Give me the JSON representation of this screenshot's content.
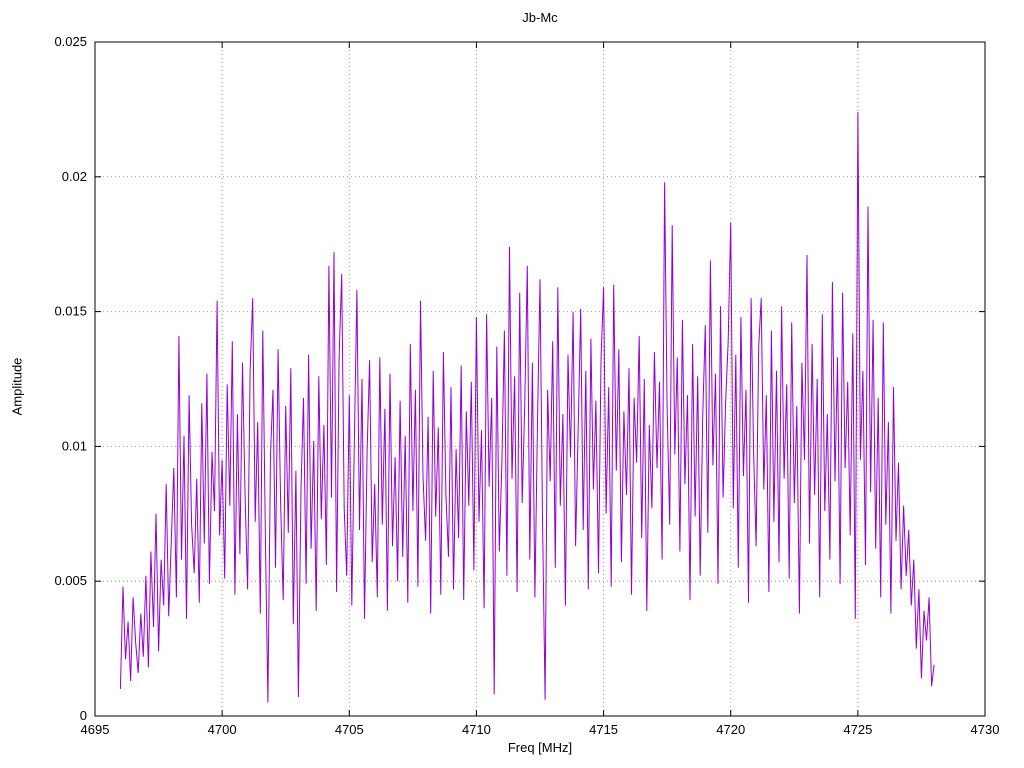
{
  "chart_data": {
    "type": "line",
    "title": "Jb-Mc",
    "xlabel": "Freq [MHz]",
    "ylabel": "Amplitude",
    "xlim": [
      4695,
      4730
    ],
    "ylim": [
      0,
      0.025
    ],
    "xticks": [
      4695,
      4700,
      4705,
      4710,
      4715,
      4720,
      4725,
      4730
    ],
    "yticks": [
      0,
      0.005,
      0.01,
      0.015,
      0.02,
      0.025
    ],
    "ytick_labels": [
      "0",
      "0.005",
      "0.01",
      "0.015",
      "0.02",
      "0.025"
    ],
    "grid": true,
    "legend": "none",
    "line_color": "#9400d3",
    "grid_color": "#9a9a9a",
    "series_name": "Jb-Mc",
    "x_start": 4696.0,
    "x_step": 0.1,
    "values": [
      0.001,
      0.0048,
      0.0021,
      0.0035,
      0.0013,
      0.0044,
      0.0027,
      0.0016,
      0.0038,
      0.0022,
      0.0052,
      0.0018,
      0.0061,
      0.0033,
      0.0075,
      0.0024,
      0.0058,
      0.0041,
      0.0086,
      0.0037,
      0.0065,
      0.0092,
      0.0044,
      0.0141,
      0.0058,
      0.0104,
      0.0036,
      0.0119,
      0.0071,
      0.0053,
      0.0088,
      0.0042,
      0.0116,
      0.0064,
      0.0127,
      0.0049,
      0.0098,
      0.0076,
      0.0154,
      0.0067,
      0.0095,
      0.0051,
      0.0123,
      0.0078,
      0.0139,
      0.0045,
      0.0112,
      0.006,
      0.0131,
      0.0083,
      0.0047,
      0.0128,
      0.0155,
      0.0072,
      0.0109,
      0.0038,
      0.0143,
      0.0066,
      0.0005,
      0.0097,
      0.0121,
      0.0055,
      0.0136,
      0.0079,
      0.0043,
      0.0115,
      0.0068,
      0.0129,
      0.0034,
      0.0091,
      0.0007,
      0.0084,
      0.0118,
      0.0049,
      0.0134,
      0.0062,
      0.0102,
      0.0039,
      0.0126,
      0.0073,
      0.0108,
      0.0056,
      0.0167,
      0.0081,
      0.0172,
      0.0046,
      0.0133,
      0.0164,
      0.0077,
      0.0052,
      0.0119,
      0.0041,
      0.0103,
      0.0158,
      0.0069,
      0.0125,
      0.0036,
      0.0098,
      0.0132,
      0.0057,
      0.0086,
      0.0044,
      0.0133,
      0.0071,
      0.0114,
      0.0039,
      0.0127,
      0.0063,
      0.0096,
      0.005,
      0.0117,
      0.0059,
      0.0104,
      0.0042,
      0.0138,
      0.0076,
      0.0121,
      0.0048,
      0.0154,
      0.0089,
      0.0065,
      0.0111,
      0.0038,
      0.0128,
      0.0074,
      0.0107,
      0.0045,
      0.0135,
      0.0082,
      0.0059,
      0.0122,
      0.0047,
      0.0099,
      0.0066,
      0.013,
      0.0043,
      0.0113,
      0.0078,
      0.0124,
      0.0054,
      0.0148,
      0.0072,
      0.0106,
      0.004,
      0.0149,
      0.0085,
      0.0118,
      0.0008,
      0.0137,
      0.0061,
      0.0094,
      0.0143,
      0.0052,
      0.0174,
      0.0088,
      0.0126,
      0.0046,
      0.0157,
      0.0079,
      0.0115,
      0.0167,
      0.0058,
      0.0131,
      0.0044,
      0.0109,
      0.0162,
      0.0073,
      0.0006,
      0.0121,
      0.0087,
      0.0139,
      0.0055,
      0.0159,
      0.0078,
      0.0112,
      0.0041,
      0.0134,
      0.0096,
      0.015,
      0.0063,
      0.0105,
      0.0151,
      0.0069,
      0.0128,
      0.0047,
      0.014,
      0.0084,
      0.0117,
      0.0053,
      0.0132,
      0.0159,
      0.0075,
      0.0122,
      0.0048,
      0.016,
      0.0091,
      0.0136,
      0.0057,
      0.0113,
      0.0082,
      0.0129,
      0.0045,
      0.0118,
      0.0094,
      0.0141,
      0.0066,
      0.0125,
      0.0039,
      0.0108,
      0.0077,
      0.0135,
      0.0092,
      0.0124,
      0.0058,
      0.0198,
      0.0115,
      0.0071,
      0.0182,
      0.0097,
      0.0133,
      0.0061,
      0.0147,
      0.0086,
      0.0119,
      0.0043,
      0.0138,
      0.0074,
      0.0126,
      0.0052,
      0.0111,
      0.0145,
      0.0068,
      0.0169,
      0.0093,
      0.0127,
      0.0049,
      0.0152,
      0.0081,
      0.0116,
      0.0139,
      0.0183,
      0.0077,
      0.0134,
      0.0055,
      0.0148,
      0.0089,
      0.0121,
      0.0042,
      0.0155,
      0.0098,
      0.0063,
      0.0137,
      0.0155,
      0.0084,
      0.0119,
      0.0046,
      0.0143,
      0.0072,
      0.0128,
      0.0057,
      0.0152,
      0.0088,
      0.0123,
      0.0051,
      0.0146,
      0.0079,
      0.0115,
      0.0038,
      0.0131,
      0.0095,
      0.0171,
      0.0064,
      0.0138,
      0.0082,
      0.0125,
      0.0044,
      0.0149,
      0.0076,
      0.0112,
      0.0058,
      0.0161,
      0.0087,
      0.0133,
      0.0049,
      0.0157,
      0.0092,
      0.0124,
      0.0067,
      0.0142,
      0.0036,
      0.0224,
      0.0095,
      0.0128,
      0.0056,
      0.0189,
      0.0083,
      0.0147,
      0.0062,
      0.0118,
      0.0044,
      0.0146,
      0.0071,
      0.0109,
      0.0038,
      0.0122,
      0.0065,
      0.0094,
      0.0047,
      0.0078,
      0.0052,
      0.0069,
      0.0041,
      0.0058,
      0.0025,
      0.0047,
      0.0014,
      0.0039,
      0.0028,
      0.0044,
      0.0011,
      0.0019
    ]
  }
}
